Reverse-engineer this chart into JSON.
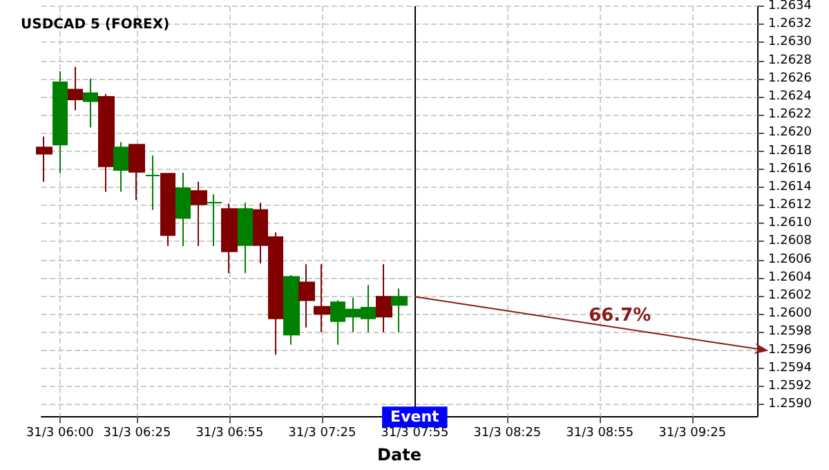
{
  "chart_data": {
    "type": "candlestick",
    "title": "USDCAD 5 (FOREX)",
    "xlabel": "Date",
    "x": [
      "--03-31T05:55",
      "--03-31T06:00",
      "--03-31T06:05",
      "--03-31T06:10",
      "--03-31T06:15",
      "--03-31T06:20",
      "--03-31T06:25",
      "--03-31T06:30",
      "--03-31T06:35",
      "--03-31T06:40",
      "--03-31T06:45",
      "--03-31T06:50",
      "--03-31T06:55",
      "--03-31T07:00",
      "--03-31T07:05",
      "--03-31T07:10",
      "--03-31T07:15",
      "--03-31T07:20",
      "--03-31T07:25",
      "--03-31T07:30",
      "--03-31T07:35",
      "--03-31T07:40",
      "--03-31T07:45",
      "--03-31T07:50"
    ],
    "ohlc": [
      [
        1.26184,
        1.26196,
        1.26146,
        1.26177
      ],
      [
        1.26187,
        1.26268,
        1.26156,
        1.26256
      ],
      [
        1.26248,
        1.26273,
        1.26225,
        1.26237
      ],
      [
        1.26235,
        1.2626,
        1.26206,
        1.26244
      ],
      [
        1.2624,
        1.26243,
        1.26135,
        1.26163
      ],
      [
        1.26159,
        1.2619,
        1.26135,
        1.26184
      ],
      [
        1.26187,
        1.26187,
        1.26126,
        1.26157
      ],
      [
        1.26153,
        1.26175,
        1.26115,
        1.26153
      ],
      [
        1.26155,
        1.26155,
        1.26075,
        1.26087
      ],
      [
        1.26106,
        1.26156,
        1.26075,
        1.26139
      ],
      [
        1.26136,
        1.26146,
        1.26075,
        1.26121
      ],
      [
        1.26123,
        1.26132,
        1.26075,
        1.26123
      ],
      [
        1.26116,
        1.26122,
        1.26045,
        1.26069
      ],
      [
        1.26076,
        1.26123,
        1.26045,
        1.26116
      ],
      [
        1.26115,
        1.26123,
        1.26056,
        1.26076
      ],
      [
        1.26085,
        1.2609,
        1.25955,
        1.25995
      ],
      [
        1.25977,
        1.26043,
        1.25966,
        1.26041
      ],
      [
        1.26035,
        1.26055,
        1.25985,
        1.26015
      ],
      [
        1.26008,
        1.26055,
        1.2598,
        1.26
      ],
      [
        1.25992,
        1.26015,
        1.25966,
        1.26013
      ],
      [
        1.25997,
        1.26018,
        1.2598,
        1.26005
      ],
      [
        1.25995,
        1.26032,
        1.2598,
        1.26007
      ],
      [
        1.26019,
        1.26055,
        1.2598,
        1.25997
      ],
      [
        1.2601,
        1.26028,
        1.2598,
        1.26019
      ]
    ],
    "colors": [
      "#800000",
      "#008000",
      "#800000",
      "#008000",
      "#800000",
      "#008000",
      "#800000",
      "#008000",
      "#800000",
      "#008000",
      "#800000",
      "#008000",
      "#800000",
      "#008000",
      "#800000",
      "#800000",
      "#008000",
      "#800000",
      "#800000",
      "#008000",
      "#008000",
      "#008000",
      "#800000",
      "#008000"
    ],
    "annotations": [
      "66.7%"
    ],
    "ref_lines": [
      {
        "axis": "x",
        "value": "--03-31T07:55",
        "label": "Event",
        "color": "#000000"
      }
    ],
    "xlim": [
      "--03-31T05:54",
      "--03-31T09:46"
    ],
    "xticks": [
      {
        "value": "--03-31T06:00",
        "label": "31/3 06:00"
      },
      {
        "value": "--03-31T06:25",
        "label": "31/3 06:25"
      },
      {
        "value": "--03-31T06:55",
        "label": "31/3 06:55"
      },
      {
        "value": "--03-31T07:25",
        "label": "31/3 07:25"
      },
      {
        "value": "--03-31T07:55",
        "label": "31/3 07:55"
      },
      {
        "value": "--03-31T08:25",
        "label": "31/3 08:25"
      },
      {
        "value": "--03-31T08:55",
        "label": "31/3 08:55"
      },
      {
        "value": "--03-31T09:25",
        "label": "31/3 09:25"
      }
    ],
    "ylim": [
      1.25887,
      1.2634
    ],
    "yticks": [
      {
        "value": 1.259,
        "label": "1.2590"
      },
      {
        "value": 1.2592,
        "label": "1.2592"
      },
      {
        "value": 1.2594,
        "label": "1.2594"
      },
      {
        "value": 1.2596,
        "label": "1.2596"
      },
      {
        "value": 1.2598,
        "label": "1.2598"
      },
      {
        "value": 1.26,
        "label": "1.2600"
      },
      {
        "value": 1.2602,
        "label": "1.2602"
      },
      {
        "value": 1.2604,
        "label": "1.2604"
      },
      {
        "value": 1.2606,
        "label": "1.2606"
      },
      {
        "value": 1.2608,
        "label": "1.2608"
      },
      {
        "value": 1.261,
        "label": "1.2610"
      },
      {
        "value": 1.2612,
        "label": "1.2612"
      },
      {
        "value": 1.2614,
        "label": "1.2614"
      },
      {
        "value": 1.2616,
        "label": "1.2616"
      },
      {
        "value": 1.2618,
        "label": "1.2618"
      },
      {
        "value": 1.262,
        "label": "1.2620"
      },
      {
        "value": 1.2622,
        "label": "1.2622"
      },
      {
        "value": 1.2624,
        "label": "1.2624"
      },
      {
        "value": 1.2626,
        "label": "1.2626"
      },
      {
        "value": 1.2628,
        "label": "1.2628"
      },
      {
        "value": 1.263,
        "label": "1.2630"
      },
      {
        "value": 1.2632,
        "label": "1.2632"
      },
      {
        "value": 1.2634,
        "label": "1.2634"
      }
    ],
    "grid": true
  }
}
